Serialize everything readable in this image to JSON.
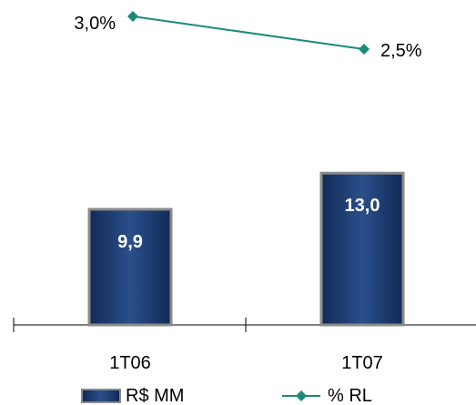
{
  "chart_data": {
    "type": "bar",
    "categories": [
      "1T06",
      "1T07"
    ],
    "series": [
      {
        "name": "R$ MM",
        "type": "bar",
        "values": [
          9.9,
          13.0
        ],
        "labels": [
          "9,9",
          "13,0"
        ],
        "color": "#1f3a6e"
      },
      {
        "name": "% RL",
        "type": "line",
        "values": [
          3.0,
          2.5
        ],
        "labels": [
          "3,0%",
          "2,5%"
        ],
        "color": "#1b8a7a"
      }
    ],
    "legend": {
      "placement": "bottom",
      "items": [
        "R$ MM",
        "% RL"
      ]
    },
    "grid": false
  }
}
